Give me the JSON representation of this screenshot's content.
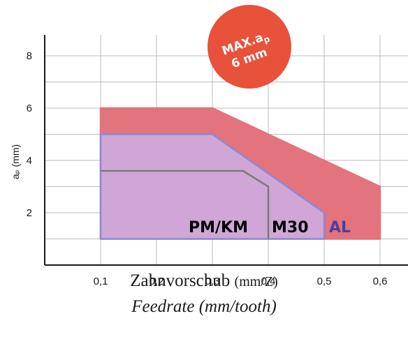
{
  "chart_data": {
    "type": "area",
    "x_ticks": [
      "0,1",
      "0,2",
      "0,3",
      "0,4",
      "0,5",
      "0,6"
    ],
    "y_ticks": [
      "2",
      "4",
      "6",
      "8"
    ],
    "ylabel": "aₚ (mm)",
    "xlabel_de_main": "Zahnvorschub ",
    "xlabel_de_unit": "(mm/Z)",
    "xlabel_en": "Feedrate (mm/tooth)",
    "xlim": [
      0,
      0.65
    ],
    "ylim": [
      0,
      8.8
    ],
    "grid": true,
    "badge": {
      "line1": "MAX.a",
      "line1_sub": "p",
      "line2": "6 mm",
      "color": "#e8513a"
    },
    "series": [
      {
        "name": "PM/KM",
        "color": "#000000",
        "fill": "none",
        "stroke": "#7a7a7a",
        "points": [
          [
            0.1,
            3.6
          ],
          [
            0.355,
            3.6
          ],
          [
            0.4,
            3.0
          ],
          [
            0.4,
            1.0
          ]
        ]
      },
      {
        "name": "M30",
        "color": "#000000",
        "fill": "#cfa6d6",
        "stroke": "#8a8ad6",
        "points": [
          [
            0.1,
            1.0
          ],
          [
            0.1,
            5.0
          ],
          [
            0.3,
            5.0
          ],
          [
            0.5,
            2.0
          ],
          [
            0.5,
            1.0
          ]
        ]
      },
      {
        "name": "AL",
        "color": "#4b3ea0",
        "fill": "#e3737d",
        "stroke": "#e3737d",
        "points": [
          [
            0.1,
            1.0
          ],
          [
            0.1,
            6.0
          ],
          [
            0.3,
            6.0
          ],
          [
            0.6,
            3.0
          ],
          [
            0.6,
            1.0
          ]
        ]
      }
    ]
  }
}
